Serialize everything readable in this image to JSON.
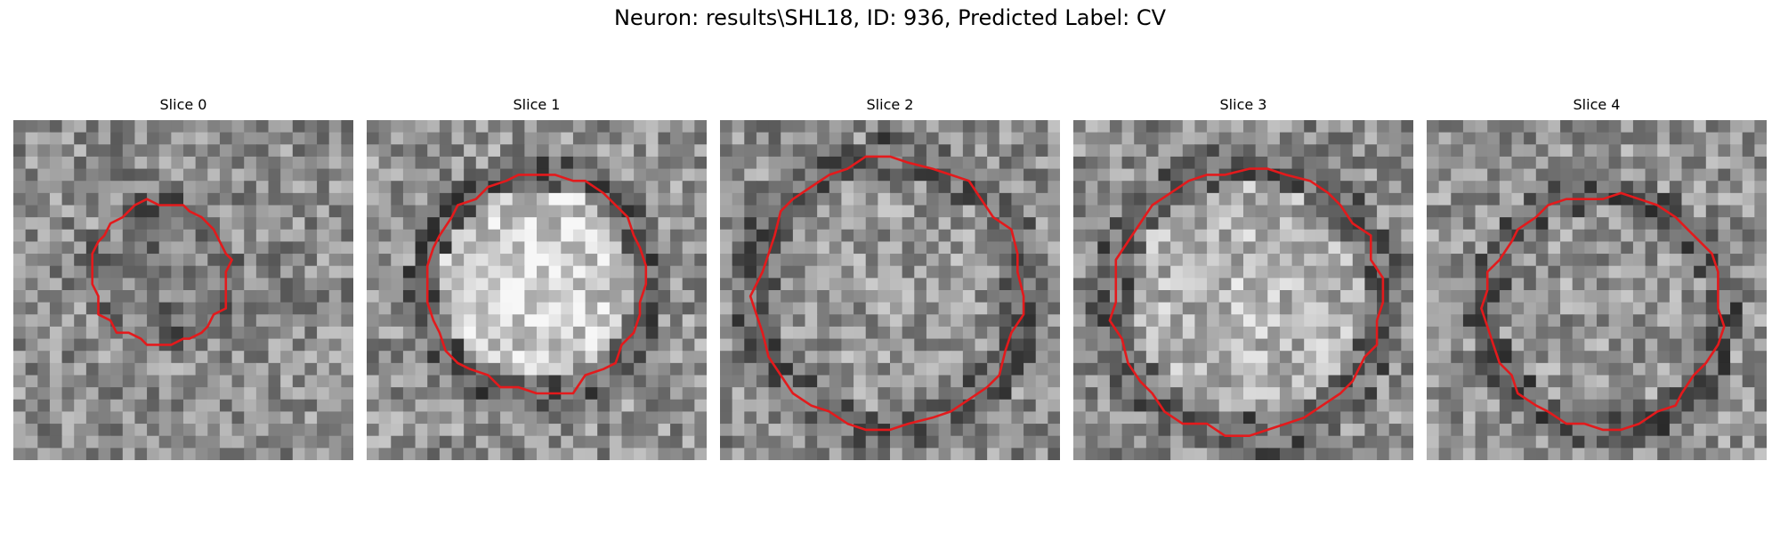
{
  "figure": {
    "title": "Neuron: results\\SHL18, ID: 936, Predicted Label: CV"
  },
  "contour_color": "#e31a1c",
  "colormap": "gray",
  "panels": [
    {
      "title": "Slice 0"
    },
    {
      "title": "Slice 1"
    },
    {
      "title": "Slice 2"
    },
    {
      "title": "Slice 3"
    },
    {
      "title": "Slice 4"
    }
  ]
}
